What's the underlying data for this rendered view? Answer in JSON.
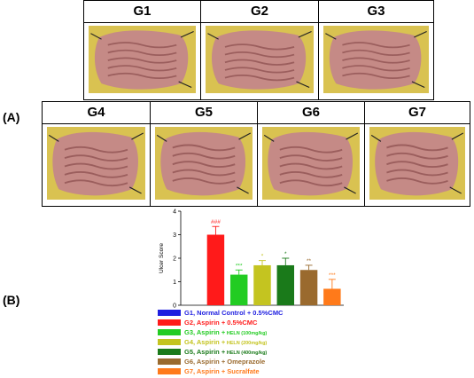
{
  "panel_a_label": "(A)",
  "panel_b_label": "(B)",
  "photo_groups_top": [
    "G1",
    "G2",
    "G3"
  ],
  "photo_groups_bottom": [
    "G4",
    "G5",
    "G6",
    "G7"
  ],
  "colors": {
    "photo_background": "#d9c251",
    "tissue": "#c58a86",
    "tissue_fold": "#9b5e5d"
  },
  "chart_data": {
    "type": "bar",
    "ylabel": "Ulcer Score",
    "ylim": [
      0,
      4
    ],
    "yticks": [
      0,
      1,
      2,
      3,
      4
    ],
    "categories": [
      "G1",
      "G2",
      "G3",
      "G4",
      "G5",
      "G6",
      "G7"
    ],
    "values": [
      0,
      3.0,
      1.3,
      1.7,
      1.7,
      1.5,
      0.7
    ],
    "errors": [
      0,
      0.35,
      0.2,
      0.2,
      0.3,
      0.2,
      0.4
    ],
    "colors": [
      "#1f1fe0",
      "#ff1a1a",
      "#22cc22",
      "#c4c420",
      "#1a7a1a",
      "#9a6a2e",
      "#ff7a1a"
    ],
    "significance": [
      "",
      "###",
      "***",
      "*",
      "*",
      "**",
      "***"
    ],
    "legend": [
      {
        "text": "G1, Normal Control + 0.5%CMC",
        "sub": "",
        "color": "#1f1fe0"
      },
      {
        "text": "G2, Aspirin + 0.5%CMC",
        "sub": "",
        "color": "#ff1a1a"
      },
      {
        "text": "G3, Aspirin +",
        "sub": "HELN (100mg/kg)",
        "color": "#22cc22"
      },
      {
        "text": "G4, Aspirin +",
        "sub": "HELN (200mg/kg)",
        "color": "#c4c420"
      },
      {
        "text": "G5, Aspirin +",
        "sub": "HELN (400mg/kg)",
        "color": "#1a7a1a"
      },
      {
        "text": "G6, Aspirin + Omeprazole",
        "sub": "",
        "color": "#9a6a2e"
      },
      {
        "text": "G7, Aspirin + Sucralfate",
        "sub": "",
        "color": "#ff7a1a"
      }
    ]
  }
}
